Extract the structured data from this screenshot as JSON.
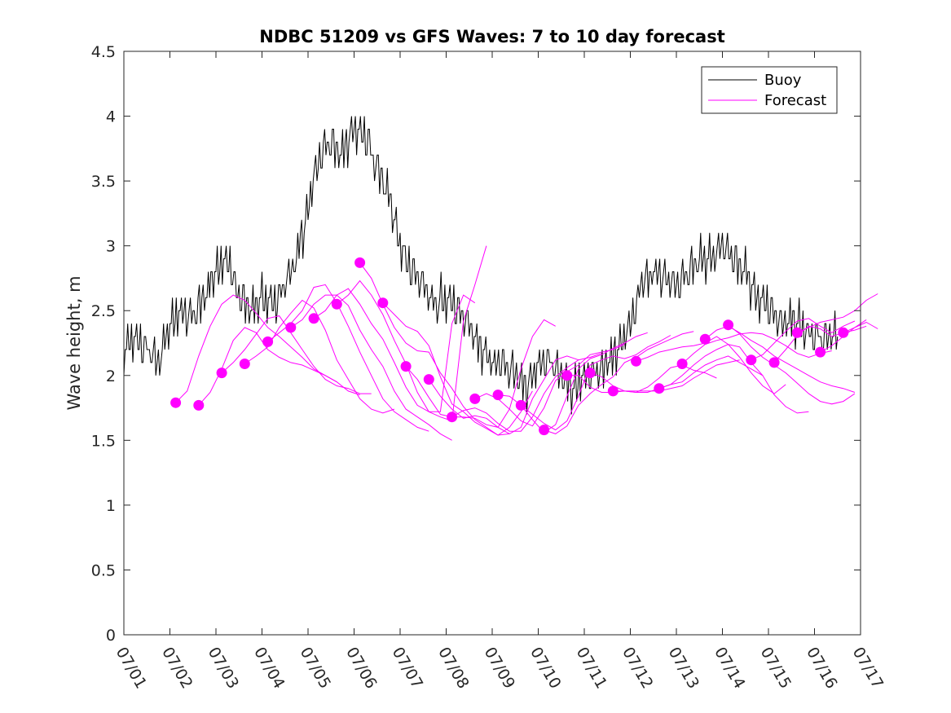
{
  "chart_data": {
    "type": "line",
    "title": "NDBC 51209 vs GFS Waves: 7 to 10 day forecast",
    "xlabel": "",
    "ylabel": "Wave height, m",
    "ylim": [
      0,
      4.5
    ],
    "yticks": [
      0,
      0.5,
      1,
      1.5,
      2,
      2.5,
      3,
      3.5,
      4,
      4.5
    ],
    "ytick_labels": [
      "0",
      "0.5",
      "1",
      "1.5",
      "2",
      "2.5",
      "3",
      "3.5",
      "4",
      "4.5"
    ],
    "xlim": [
      "07/01",
      "07/17"
    ],
    "xtick_labels": [
      "07/01",
      "07/02",
      "07/03",
      "07/04",
      "07/05",
      "07/06",
      "07/07",
      "07/08",
      "07/09",
      "07/10",
      "07/11",
      "07/12",
      "07/13",
      "07/14",
      "07/15",
      "07/16",
      "07/17"
    ],
    "grid": false,
    "legend": {
      "placement": "top-right",
      "entries": [
        {
          "name": "Buoy",
          "color": "#000000"
        },
        {
          "name": "Forecast",
          "color": "#ff00ff"
        }
      ]
    },
    "series": [
      {
        "name": "Buoy",
        "color": "#000000",
        "x": [
          "07/01 00:00",
          "07/01 06:00",
          "07/01 12:00",
          "07/01 18:00",
          "07/02 00:00",
          "07/02 06:00",
          "07/02 12:00",
          "07/02 18:00",
          "07/03 00:00",
          "07/03 06:00",
          "07/03 12:00",
          "07/03 18:00",
          "07/04 00:00",
          "07/04 06:00",
          "07/04 12:00",
          "07/04 18:00",
          "07/05 00:00",
          "07/05 06:00",
          "07/05 12:00",
          "07/05 18:00",
          "07/06 00:00",
          "07/06 06:00",
          "07/06 12:00",
          "07/06 18:00",
          "07/07 00:00",
          "07/07 06:00",
          "07/07 12:00",
          "07/07 18:00",
          "07/08 00:00",
          "07/08 06:00",
          "07/08 12:00",
          "07/08 18:00",
          "07/09 00:00",
          "07/09 06:00",
          "07/09 12:00",
          "07/09 18:00",
          "07/10 00:00",
          "07/10 06:00",
          "07/10 12:00",
          "07/10 18:00",
          "07/11 00:00",
          "07/11 06:00",
          "07/11 12:00",
          "07/11 18:00",
          "07/12 00:00",
          "07/12 06:00",
          "07/12 12:00",
          "07/12 18:00",
          "07/13 00:00",
          "07/13 06:00",
          "07/13 12:00",
          "07/13 18:00",
          "07/14 00:00",
          "07/14 06:00",
          "07/14 12:00",
          "07/14 18:00",
          "07/15 00:00",
          "07/15 06:00",
          "07/15 12:00",
          "07/15 18:00",
          "07/16 00:00",
          "07/16 06:00",
          "07/16 12:00"
        ],
        "values": [
          2.2,
          2.3,
          2.2,
          2.1,
          2.4,
          2.5,
          2.45,
          2.6,
          2.8,
          2.9,
          2.6,
          2.5,
          2.6,
          2.55,
          2.7,
          2.9,
          3.3,
          3.7,
          3.8,
          3.7,
          3.9,
          3.85,
          3.6,
          3.4,
          3.0,
          2.8,
          2.7,
          2.55,
          2.6,
          2.5,
          2.4,
          2.2,
          2.1,
          2.1,
          2.0,
          1.9,
          2.1,
          2.1,
          2.0,
          1.9,
          2.0,
          2.0,
          2.1,
          2.2,
          2.4,
          2.7,
          2.8,
          2.75,
          2.7,
          2.8,
          2.9,
          2.9,
          3.0,
          2.9,
          2.8,
          2.6,
          2.55,
          2.4,
          2.45,
          2.35,
          2.3,
          2.3,
          2.3
        ]
      },
      {
        "name": "Forecast",
        "color": "#ff00ff",
        "runs": [
          {
            "start": "07/02 03:00",
            "values": [
              1.79,
              1.88,
              2.15,
              2.38,
              2.55,
              2.62,
              2.58,
              2.48,
              2.37,
              2.3,
              2.22,
              2.14,
              2.05,
              2.0,
              1.95
            ]
          },
          {
            "start": "07/02 15:00",
            "values": [
              1.77,
              1.87,
              2.05,
              2.27,
              2.37,
              2.33,
              2.2,
              2.14,
              2.1,
              2.08,
              2.04,
              2.0,
              1.95,
              1.88,
              1.85
            ]
          },
          {
            "start": "07/03 03:00",
            "values": [
              2.02,
              2.1,
              2.2,
              2.32,
              2.44,
              2.46,
              2.33,
              2.2,
              2.07,
              1.97,
              1.92,
              1.9,
              1.86,
              1.86
            ]
          },
          {
            "start": "07/03 15:00",
            "values": [
              2.09,
              2.15,
              2.22,
              2.37,
              2.48,
              2.58,
              2.52,
              2.35,
              2.12,
              1.97,
              1.82,
              1.74,
              1.71,
              1.74
            ]
          },
          {
            "start": "07/04 03:00",
            "values": [
              2.26,
              2.33,
              2.4,
              2.5,
              2.68,
              2.7,
              2.56,
              2.38,
              2.18,
              2.0,
              1.82,
              1.72,
              1.66,
              1.6,
              1.57
            ]
          },
          {
            "start": "07/04 15:00",
            "values": [
              2.37,
              2.43,
              2.55,
              2.62,
              2.62,
              2.54,
              2.35,
              2.2,
              2.07,
              1.88,
              1.74,
              1.68,
              1.62,
              1.55,
              1.5
            ]
          },
          {
            "start": "07/05 03:00",
            "values": [
              2.44,
              2.5,
              2.62,
              2.67,
              2.55,
              2.4,
              2.28,
              2.1,
              1.91,
              1.77,
              1.72,
              1.72,
              2.4,
              2.62,
              2.56
            ]
          },
          {
            "start": "07/05 15:00",
            "values": [
              2.55,
              2.62,
              2.73,
              2.62,
              2.47,
              2.27,
              2.09,
              1.87,
              1.72,
              1.68,
              1.65,
              2.42,
              2.7,
              3.0
            ]
          },
          {
            "start": "07/06 03:00",
            "values": [
              2.87,
              2.75,
              2.55,
              2.37,
              2.25,
              2.19,
              2.18,
              2.02,
              1.9,
              1.76,
              1.66,
              1.6,
              1.54,
              1.55
            ]
          },
          {
            "start": "07/06 15:00",
            "values": [
              2.56,
              2.47,
              2.38,
              2.34,
              2.23,
              1.99,
              1.78,
              1.72,
              1.64,
              1.59,
              1.54,
              1.6,
              1.72,
              1.88
            ]
          },
          {
            "start": "07/07 03:00",
            "values": [
              2.07,
              1.97,
              1.83,
              1.7,
              1.68,
              1.68,
              1.67,
              1.62,
              1.6,
              1.74,
              2.05,
              2.3,
              2.43,
              2.38
            ]
          },
          {
            "start": "07/07 15:00",
            "values": [
              1.97,
              1.84,
              1.74,
              1.67,
              1.69,
              1.67,
              1.6,
              1.55,
              1.6,
              1.82,
              1.97,
              2.12,
              2.15,
              2.12
            ]
          },
          {
            "start": "07/08 03:00",
            "values": [
              1.68,
              1.73,
              1.75,
              1.71,
              1.63,
              1.57,
              1.57,
              1.68,
              1.86,
              1.99,
              2.06,
              2.12,
              2.14,
              2.17
            ]
          },
          {
            "start": "07/08 15:00",
            "values": [
              1.82,
              1.86,
              1.82,
              1.74,
              1.65,
              1.61,
              1.75,
              1.96,
              2.03,
              2.08,
              2.16,
              2.18,
              2.2,
              2.24
            ]
          },
          {
            "start": "07/09 03:00",
            "values": [
              1.85,
              1.84,
              1.77,
              1.66,
              1.56,
              1.62,
              1.84,
              2.05,
              2.13,
              2.16,
              2.21,
              2.25,
              2.3,
              2.33
            ]
          },
          {
            "start": "07/09 15:00",
            "values": [
              1.77,
              1.7,
              1.63,
              1.58,
              1.65,
              1.84,
              2.08,
              2.12,
              2.15,
              2.13,
              2.16,
              2.22,
              2.26,
              2.31
            ]
          },
          {
            "start": "07/10 03:00",
            "values": [
              1.58,
              1.55,
              1.61,
              1.77,
              1.86,
              1.93,
              1.99,
              2.1,
              2.14,
              2.2,
              2.24,
              2.28,
              2.32,
              2.34
            ]
          },
          {
            "start": "07/10 15:00",
            "values": [
              2.0,
              2.0,
              1.91,
              1.87,
              1.87,
              1.88,
              1.87,
              1.91,
              1.98,
              2.06,
              2.08,
              2.04,
              2.02,
              1.98
            ]
          },
          {
            "start": "07/11 03:00",
            "values": [
              2.02,
              1.99,
              1.92,
              1.88,
              1.88,
              1.88,
              1.88,
              1.9,
              1.92,
              1.98,
              2.03,
              2.08,
              2.1,
              2.12
            ]
          },
          {
            "start": "07/11 15:00",
            "values": [
              1.88,
              1.88,
              1.87,
              1.87,
              1.9,
              1.93,
              1.95,
              2.02,
              2.08,
              2.12,
              2.15,
              2.1,
              2.05,
              2.0
            ]
          },
          {
            "start": "07/12 03:00",
            "values": [
              2.11,
              2.14,
              2.18,
              2.2,
              2.22,
              2.23,
              2.25,
              2.3,
              2.24,
              2.14,
              2.02,
              1.92,
              1.86,
              1.93
            ]
          },
          {
            "start": "07/12 15:00",
            "values": [
              1.9,
              1.93,
              2.0,
              2.08,
              2.15,
              2.2,
              2.24,
              2.22,
              2.1,
              2.0,
              1.85,
              1.76,
              1.71,
              1.72
            ]
          },
          {
            "start": "07/13 03:00",
            "values": [
              2.09,
              2.17,
              2.24,
              2.27,
              2.29,
              2.32,
              2.33,
              2.32,
              2.28,
              2.23,
              2.17,
              2.14,
              2.17,
              2.19
            ]
          },
          {
            "start": "07/13 15:00",
            "values": [
              2.28,
              2.35,
              2.38,
              2.33,
              2.27,
              2.22,
              2.15,
              2.1,
              2.05,
              2.0,
              1.95,
              1.92,
              1.9,
              1.87
            ]
          },
          {
            "start": "07/14 03:00",
            "values": [
              2.39,
              2.32,
              2.22,
              2.14,
              2.08,
              2.02,
              1.94,
              1.86,
              1.8,
              1.78,
              1.8,
              1.86
            ]
          },
          {
            "start": "07/14 15:00",
            "values": [
              2.12,
              2.16,
              2.25,
              2.34,
              2.42,
              2.44,
              2.38,
              2.33,
              2.38,
              2.42
            ]
          },
          {
            "start": "07/15 03:00",
            "values": [
              2.1,
              2.2,
              2.31,
              2.38,
              2.36,
              2.3,
              2.33,
              2.37,
              2.43
            ]
          },
          {
            "start": "07/15 15:00",
            "values": [
              2.33,
              2.37,
              2.41,
              2.43,
              2.45,
              2.5,
              2.58,
              2.63
            ]
          },
          {
            "start": "07/16 03:00",
            "values": [
              2.18,
              2.23,
              2.3,
              2.37,
              2.41,
              2.36
            ]
          },
          {
            "start": "07/16 15:00",
            "values": [
              2.33,
              2.35,
              2.38
            ]
          }
        ]
      }
    ]
  }
}
